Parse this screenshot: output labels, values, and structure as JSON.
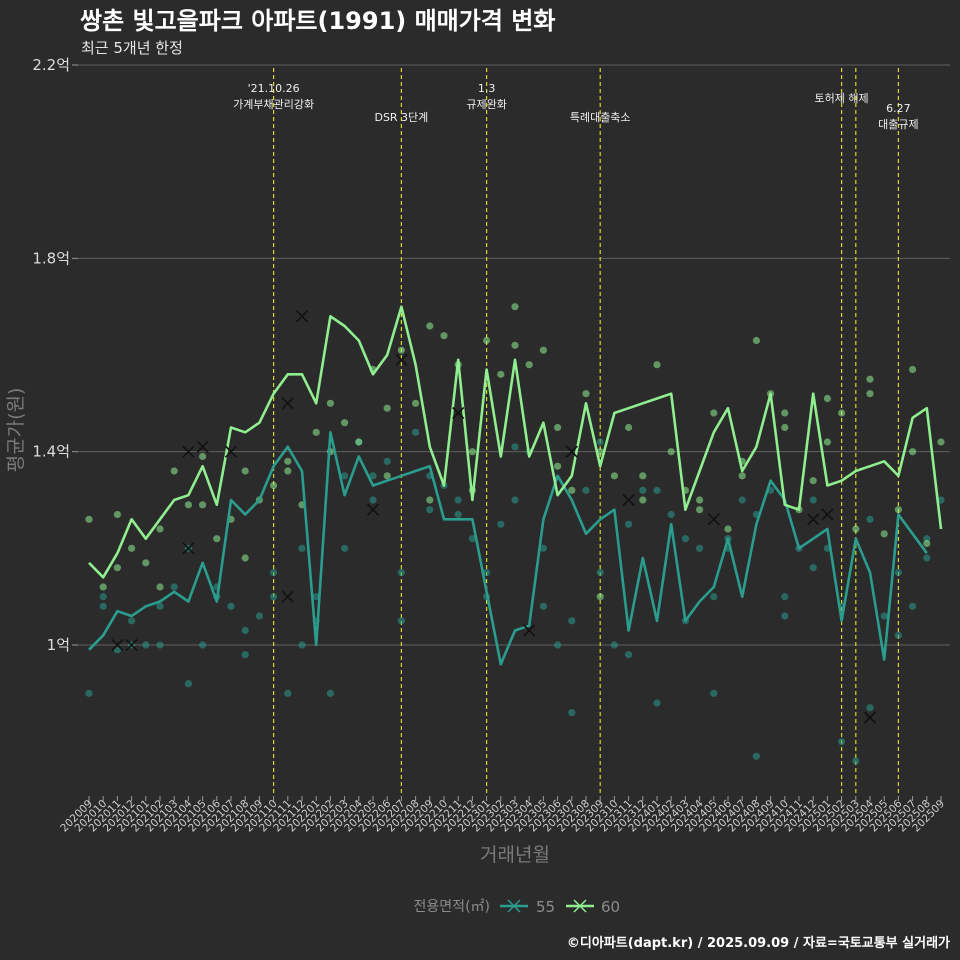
{
  "chart_data": {
    "type": "line",
    "title": "쌍촌 빛고을파크 아파트(1991) 매매가격 변화",
    "subtitle": "최근 5개년 한정",
    "xlabel": "거래년월",
    "ylabel": "평균가(원)",
    "y_unit": "억",
    "ylim": [
      0.7,
      2.2
    ],
    "yticks": [
      {
        "value": 1.0,
        "label": "1억"
      },
      {
        "value": 1.4,
        "label": "1.4억"
      },
      {
        "value": 1.8,
        "label": "1.8억"
      },
      {
        "value": 2.2,
        "label": "2.2억"
      }
    ],
    "grid": true,
    "categories": [
      "202009",
      "202010",
      "202011",
      "202012",
      "202101",
      "202102",
      "202103",
      "202104",
      "202105",
      "202106",
      "202107",
      "202108",
      "202109",
      "202110",
      "202111",
      "202112",
      "202201",
      "202202",
      "202203",
      "202204",
      "202205",
      "202206",
      "202207",
      "202208",
      "202209",
      "202210",
      "202211",
      "202212",
      "202301",
      "202302",
      "202303",
      "202304",
      "202305",
      "202306",
      "202307",
      "202308",
      "202309",
      "202310",
      "202311",
      "202312",
      "202401",
      "202402",
      "202403",
      "202404",
      "202405",
      "202406",
      "202407",
      "202408",
      "202409",
      "202410",
      "202411",
      "202412",
      "202501",
      "202502",
      "202503",
      "202504",
      "202505",
      "202506",
      "202507",
      "202508",
      "202509"
    ],
    "legend": {
      "title": "전용면적(㎡)",
      "placement": "bottom"
    },
    "series": [
      {
        "name": "55",
        "color": "#2a9d8f",
        "values": [
          0.99,
          1.02,
          1.07,
          1.06,
          1.08,
          1.09,
          1.11,
          1.09,
          1.17,
          1.09,
          1.3,
          1.27,
          1.3,
          1.37,
          1.41,
          1.36,
          1.0,
          1.44,
          1.31,
          1.39,
          1.33,
          1.34,
          1.35,
          1.36,
          1.37,
          1.26,
          1.26,
          1.26,
          null,
          0.96,
          1.03,
          1.04,
          1.26,
          1.35,
          1.3,
          1.23,
          1.26,
          1.28,
          1.03,
          1.18,
          1.05,
          1.25,
          1.05,
          1.09,
          1.12,
          1.22,
          1.1,
          1.25,
          1.34,
          1.3,
          1.2,
          1.22,
          1.24,
          1.05,
          1.22,
          1.15,
          0.97,
          1.27,
          1.23,
          1.19,
          null
        ],
        "points": [
          0.9,
          1.08,
          1.1,
          0.99,
          1.0,
          1.05,
          1.0,
          1.08,
          1.0,
          1.12,
          1.2,
          0.92,
          1.0,
          1.1,
          1.12,
          1.08,
          1.03,
          0.98,
          1.06,
          1.15,
          1.1,
          0.9,
          1.2,
          1.0,
          1.05,
          1.1,
          0.9,
          1.2,
          1.35,
          1.42,
          1.3,
          1.35,
          1.38,
          1.15,
          1.05,
          1.44,
          1.35,
          1.28,
          1.33,
          1.27,
          1.3,
          1.22,
          1.15,
          1.1,
          1.25,
          1.3,
          1.41,
          1.4,
          1.2,
          1.08,
          1.0,
          1.05,
          0.86,
          1.32,
          1.42,
          1.15,
          1.0,
          0.98,
          1.25,
          1.32,
          0.88,
          1.32,
          1.27,
          1.22,
          1.05,
          1.2,
          0.9,
          1.1,
          1.2,
          1.22,
          1.3,
          0.77,
          1.27,
          1.32,
          1.06,
          1.1,
          1.2,
          1.16,
          1.3,
          1.2,
          1.08,
          0.8,
          0.76,
          1.26,
          0.87,
          1.06,
          1.02,
          1.15,
          1.08,
          1.18,
          1.22,
          1.3
        ],
        "cancelled": [
          {
            "x": "202011",
            "y": 1.0
          },
          {
            "x": "202012",
            "y": 1.0
          },
          {
            "x": "202104",
            "y": 1.2
          },
          {
            "x": "202111",
            "y": 1.1
          },
          {
            "x": "202205",
            "y": 1.28
          },
          {
            "x": "202304",
            "y": 1.03
          },
          {
            "x": "202311",
            "y": 1.3
          },
          {
            "x": "202405",
            "y": 1.26
          },
          {
            "x": "202501",
            "y": 1.27
          }
        ]
      },
      {
        "name": "60",
        "color": "#90ee90",
        "values": [
          1.17,
          1.14,
          1.19,
          1.26,
          1.22,
          1.26,
          1.3,
          1.31,
          1.37,
          1.29,
          1.45,
          1.44,
          1.46,
          1.52,
          1.56,
          1.56,
          1.5,
          1.68,
          1.66,
          1.63,
          1.56,
          1.6,
          1.7,
          1.58,
          1.41,
          1.33,
          1.59,
          1.3,
          1.57,
          1.39,
          1.59,
          1.39,
          1.46,
          1.31,
          1.35,
          1.5,
          1.37,
          1.48,
          1.49,
          1.5,
          1.51,
          1.52,
          1.28,
          1.36,
          1.44,
          1.49,
          1.36,
          1.41,
          1.52,
          1.29,
          1.28,
          1.52,
          1.33,
          1.34,
          1.36,
          1.37,
          1.38,
          1.35,
          1.47,
          1.49,
          1.24
        ],
        "points": [
          1.26,
          1.12,
          1.16,
          1.27,
          1.2,
          1.17,
          1.24,
          1.12,
          1.36,
          1.29,
          1.29,
          1.39,
          1.22,
          1.26,
          1.36,
          1.18,
          1.3,
          1.33,
          1.36,
          1.38,
          1.29,
          1.44,
          1.4,
          1.5,
          1.46,
          1.42,
          1.57,
          1.35,
          1.49,
          1.61,
          1.5,
          1.3,
          1.66,
          1.64,
          1.58,
          1.4,
          1.32,
          1.63,
          1.56,
          1.7,
          1.62,
          1.58,
          1.61,
          1.45,
          1.37,
          1.32,
          1.52,
          1.1,
          1.4,
          1.35,
          1.45,
          1.3,
          1.35,
          1.58,
          1.4,
          1.32,
          1.3,
          1.28,
          1.48,
          1.24,
          1.38,
          1.35,
          1.63,
          1.52,
          1.45,
          1.48,
          1.28,
          1.34,
          1.42,
          1.51,
          1.48,
          1.24,
          1.55,
          1.52,
          1.23,
          1.28,
          1.4,
          1.57,
          1.21,
          1.42
        ],
        "cancelled": [
          {
            "x": "202104",
            "y": 1.4
          },
          {
            "x": "202105",
            "y": 1.41
          },
          {
            "x": "202107",
            "y": 1.4
          },
          {
            "x": "202111",
            "y": 1.5
          },
          {
            "x": "202112",
            "y": 1.68
          },
          {
            "x": "202207",
            "y": 1.59
          },
          {
            "x": "202211",
            "y": 1.48
          },
          {
            "x": "202307",
            "y": 1.4
          },
          {
            "x": "202412",
            "y": 1.26
          },
          {
            "x": "202504",
            "y": 0.85
          }
        ]
      }
    ],
    "events": [
      {
        "x": "202110",
        "label_lines": [
          "'21.10.26",
          "가계부채관리강화"
        ],
        "label_row": 1
      },
      {
        "x": "202207",
        "label_lines": [
          "DSR 3단계"
        ],
        "label_row": 2
      },
      {
        "x": "202301",
        "label_lines": [
          "1.3",
          "규제완화"
        ],
        "label_row": 0
      },
      {
        "x": "202309",
        "label_lines": [
          "특례대출축소"
        ],
        "label_row": 2
      },
      {
        "x": "202502",
        "label_lines": [
          "토허제 해제"
        ],
        "label_row": 1
      },
      {
        "x": "202503",
        "label_lines": [],
        "label_row": 1
      },
      {
        "x": "202506",
        "label_lines": [
          "6.27",
          "대출규제"
        ],
        "label_row": 1
      }
    ],
    "event_line_color": "#d6d92a",
    "caption": "©디아파트(dapt.kr) / 2025.09.09 / 자료=국토교통부 실거래가"
  }
}
